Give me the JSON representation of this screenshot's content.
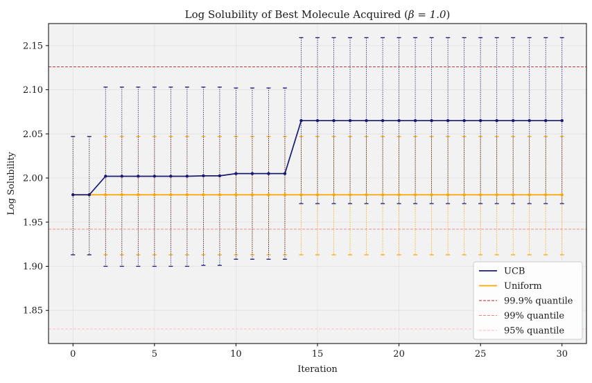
{
  "chart_data": {
    "type": "line",
    "title_text": "Log Solubility of Best Molecule Acquired (",
    "title_beta": "β = 1.0",
    "title_close": ")",
    "xlabel": "Iteration",
    "ylabel": "Log Solubility",
    "xlim": [
      -1.5,
      31.5
    ],
    "ylim": [
      1.8125,
      2.175
    ],
    "xticks": [
      0,
      5,
      10,
      15,
      20,
      25,
      30
    ],
    "yticks": [
      1.85,
      1.9,
      1.95,
      2.0,
      2.05,
      2.1,
      2.15
    ],
    "ytick_labels": [
      "1.85",
      "1.90",
      "1.95",
      "2.00",
      "2.05",
      "2.10",
      "2.15"
    ],
    "grid": true,
    "legend_position": "bottom-right",
    "x": [
      0,
      1,
      2,
      3,
      4,
      5,
      6,
      7,
      8,
      9,
      10,
      11,
      12,
      13,
      14,
      15,
      16,
      17,
      18,
      19,
      20,
      21,
      22,
      23,
      24,
      25,
      26,
      27,
      28,
      29,
      30
    ],
    "series": [
      {
        "name": "UCB",
        "color": "#191970",
        "values": [
          1.981,
          1.981,
          2.002,
          2.002,
          2.002,
          2.002,
          2.002,
          2.002,
          2.0025,
          2.0025,
          2.005,
          2.005,
          2.005,
          2.005,
          2.065,
          2.065,
          2.065,
          2.065,
          2.065,
          2.065,
          2.065,
          2.065,
          2.065,
          2.065,
          2.065,
          2.065,
          2.065,
          2.065,
          2.065,
          2.065,
          2.065
        ],
        "upper": [
          2.047,
          2.047,
          2.103,
          2.103,
          2.103,
          2.103,
          2.103,
          2.103,
          2.103,
          2.103,
          2.102,
          2.102,
          2.102,
          2.102,
          2.159,
          2.159,
          2.159,
          2.159,
          2.159,
          2.159,
          2.159,
          2.159,
          2.159,
          2.159,
          2.159,
          2.159,
          2.159,
          2.159,
          2.159,
          2.159,
          2.159
        ],
        "lower": [
          1.913,
          1.913,
          1.9,
          1.9,
          1.9,
          1.9,
          1.9,
          1.9,
          1.901,
          1.901,
          1.908,
          1.908,
          1.908,
          1.908,
          1.971,
          1.971,
          1.971,
          1.971,
          1.971,
          1.971,
          1.971,
          1.971,
          1.971,
          1.971,
          1.971,
          1.971,
          1.971,
          1.971,
          1.971,
          1.971,
          1.971
        ]
      },
      {
        "name": "Uniform",
        "color": "#FFA500",
        "values": [
          1.981,
          1.981,
          1.981,
          1.981,
          1.981,
          1.981,
          1.981,
          1.981,
          1.981,
          1.981,
          1.981,
          1.981,
          1.981,
          1.981,
          1.981,
          1.981,
          1.981,
          1.981,
          1.981,
          1.981,
          1.981,
          1.981,
          1.981,
          1.981,
          1.981,
          1.981,
          1.981,
          1.981,
          1.981,
          1.981,
          1.981
        ],
        "upper": [
          2.047,
          2.047,
          2.047,
          2.047,
          2.047,
          2.047,
          2.047,
          2.047,
          2.047,
          2.047,
          2.047,
          2.047,
          2.047,
          2.047,
          2.047,
          2.047,
          2.047,
          2.047,
          2.047,
          2.047,
          2.047,
          2.047,
          2.047,
          2.047,
          2.047,
          2.047,
          2.047,
          2.047,
          2.047,
          2.047,
          2.047
        ],
        "lower": [
          1.913,
          1.913,
          1.913,
          1.913,
          1.913,
          1.913,
          1.913,
          1.913,
          1.913,
          1.913,
          1.913,
          1.913,
          1.913,
          1.913,
          1.913,
          1.913,
          1.913,
          1.913,
          1.913,
          1.913,
          1.913,
          1.913,
          1.913,
          1.913,
          1.913,
          1.913,
          1.913,
          1.913,
          1.913,
          1.913,
          1.913
        ]
      }
    ],
    "reference_lines": [
      {
        "name": "99.9% quantile",
        "y": 2.126,
        "color": "#b22222"
      },
      {
        "name": "99% quantile",
        "y": 1.942,
        "color": "#f08080"
      },
      {
        "name": "95% quantile",
        "y": 1.829,
        "color": "#ffb6c1"
      }
    ]
  }
}
